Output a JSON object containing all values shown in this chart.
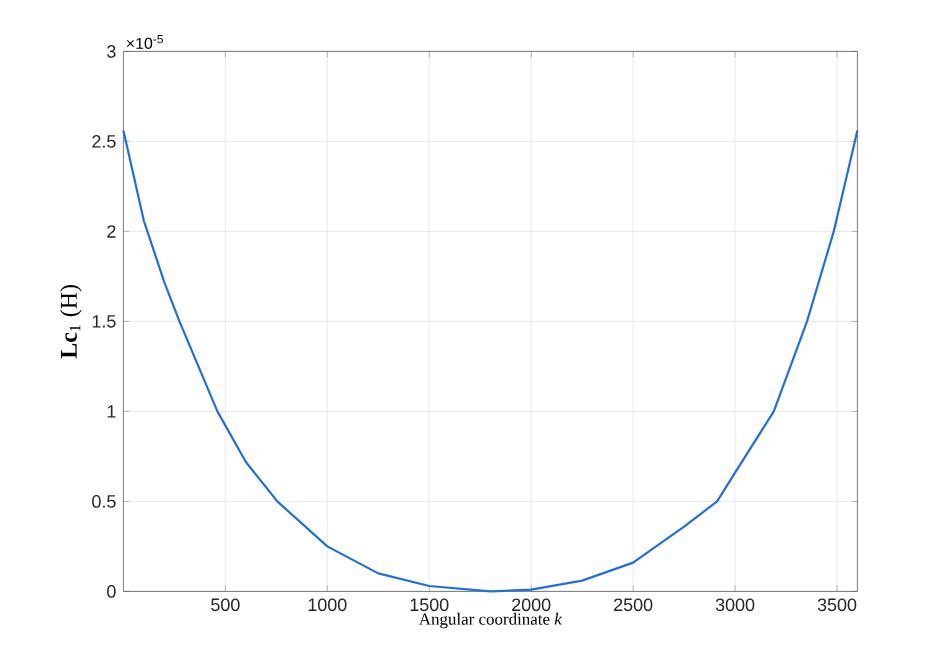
{
  "chart_data": {
    "type": "line",
    "xlabel": "Angular coordinate *k*",
    "ylabel": "**Lc**$_{1}$ (H)",
    "annotations": [
      "×10$^{-5}$"
    ],
    "x": [
      0,
      100,
      200,
      275,
      461,
      600,
      755,
      1000,
      1250,
      1500,
      1800,
      2000,
      2250,
      2500,
      2750,
      2912,
      3000,
      3190,
      3353,
      3484,
      3600
    ],
    "values": [
      2.56,
      2.06,
      1.72,
      1.5,
      1.0,
      0.72,
      0.5,
      0.25,
      0.1,
      0.03,
      0,
      0.01,
      0.06,
      0.16,
      0.36,
      0.5,
      0.66,
      1.0,
      1.5,
      2.0,
      2.56
    ],
    "color": "#1f6fdf",
    "xlim": [
      0,
      3600
    ],
    "ylim": [
      0,
      3
    ],
    "xticks": [
      500,
      1000,
      1500,
      2000,
      2500,
      3000,
      3500
    ],
    "yticks": [
      0,
      0.5,
      1,
      1.5,
      2,
      2.5,
      3
    ],
    "grid": true,
    "marker": "none",
    "line_style": "solid"
  }
}
